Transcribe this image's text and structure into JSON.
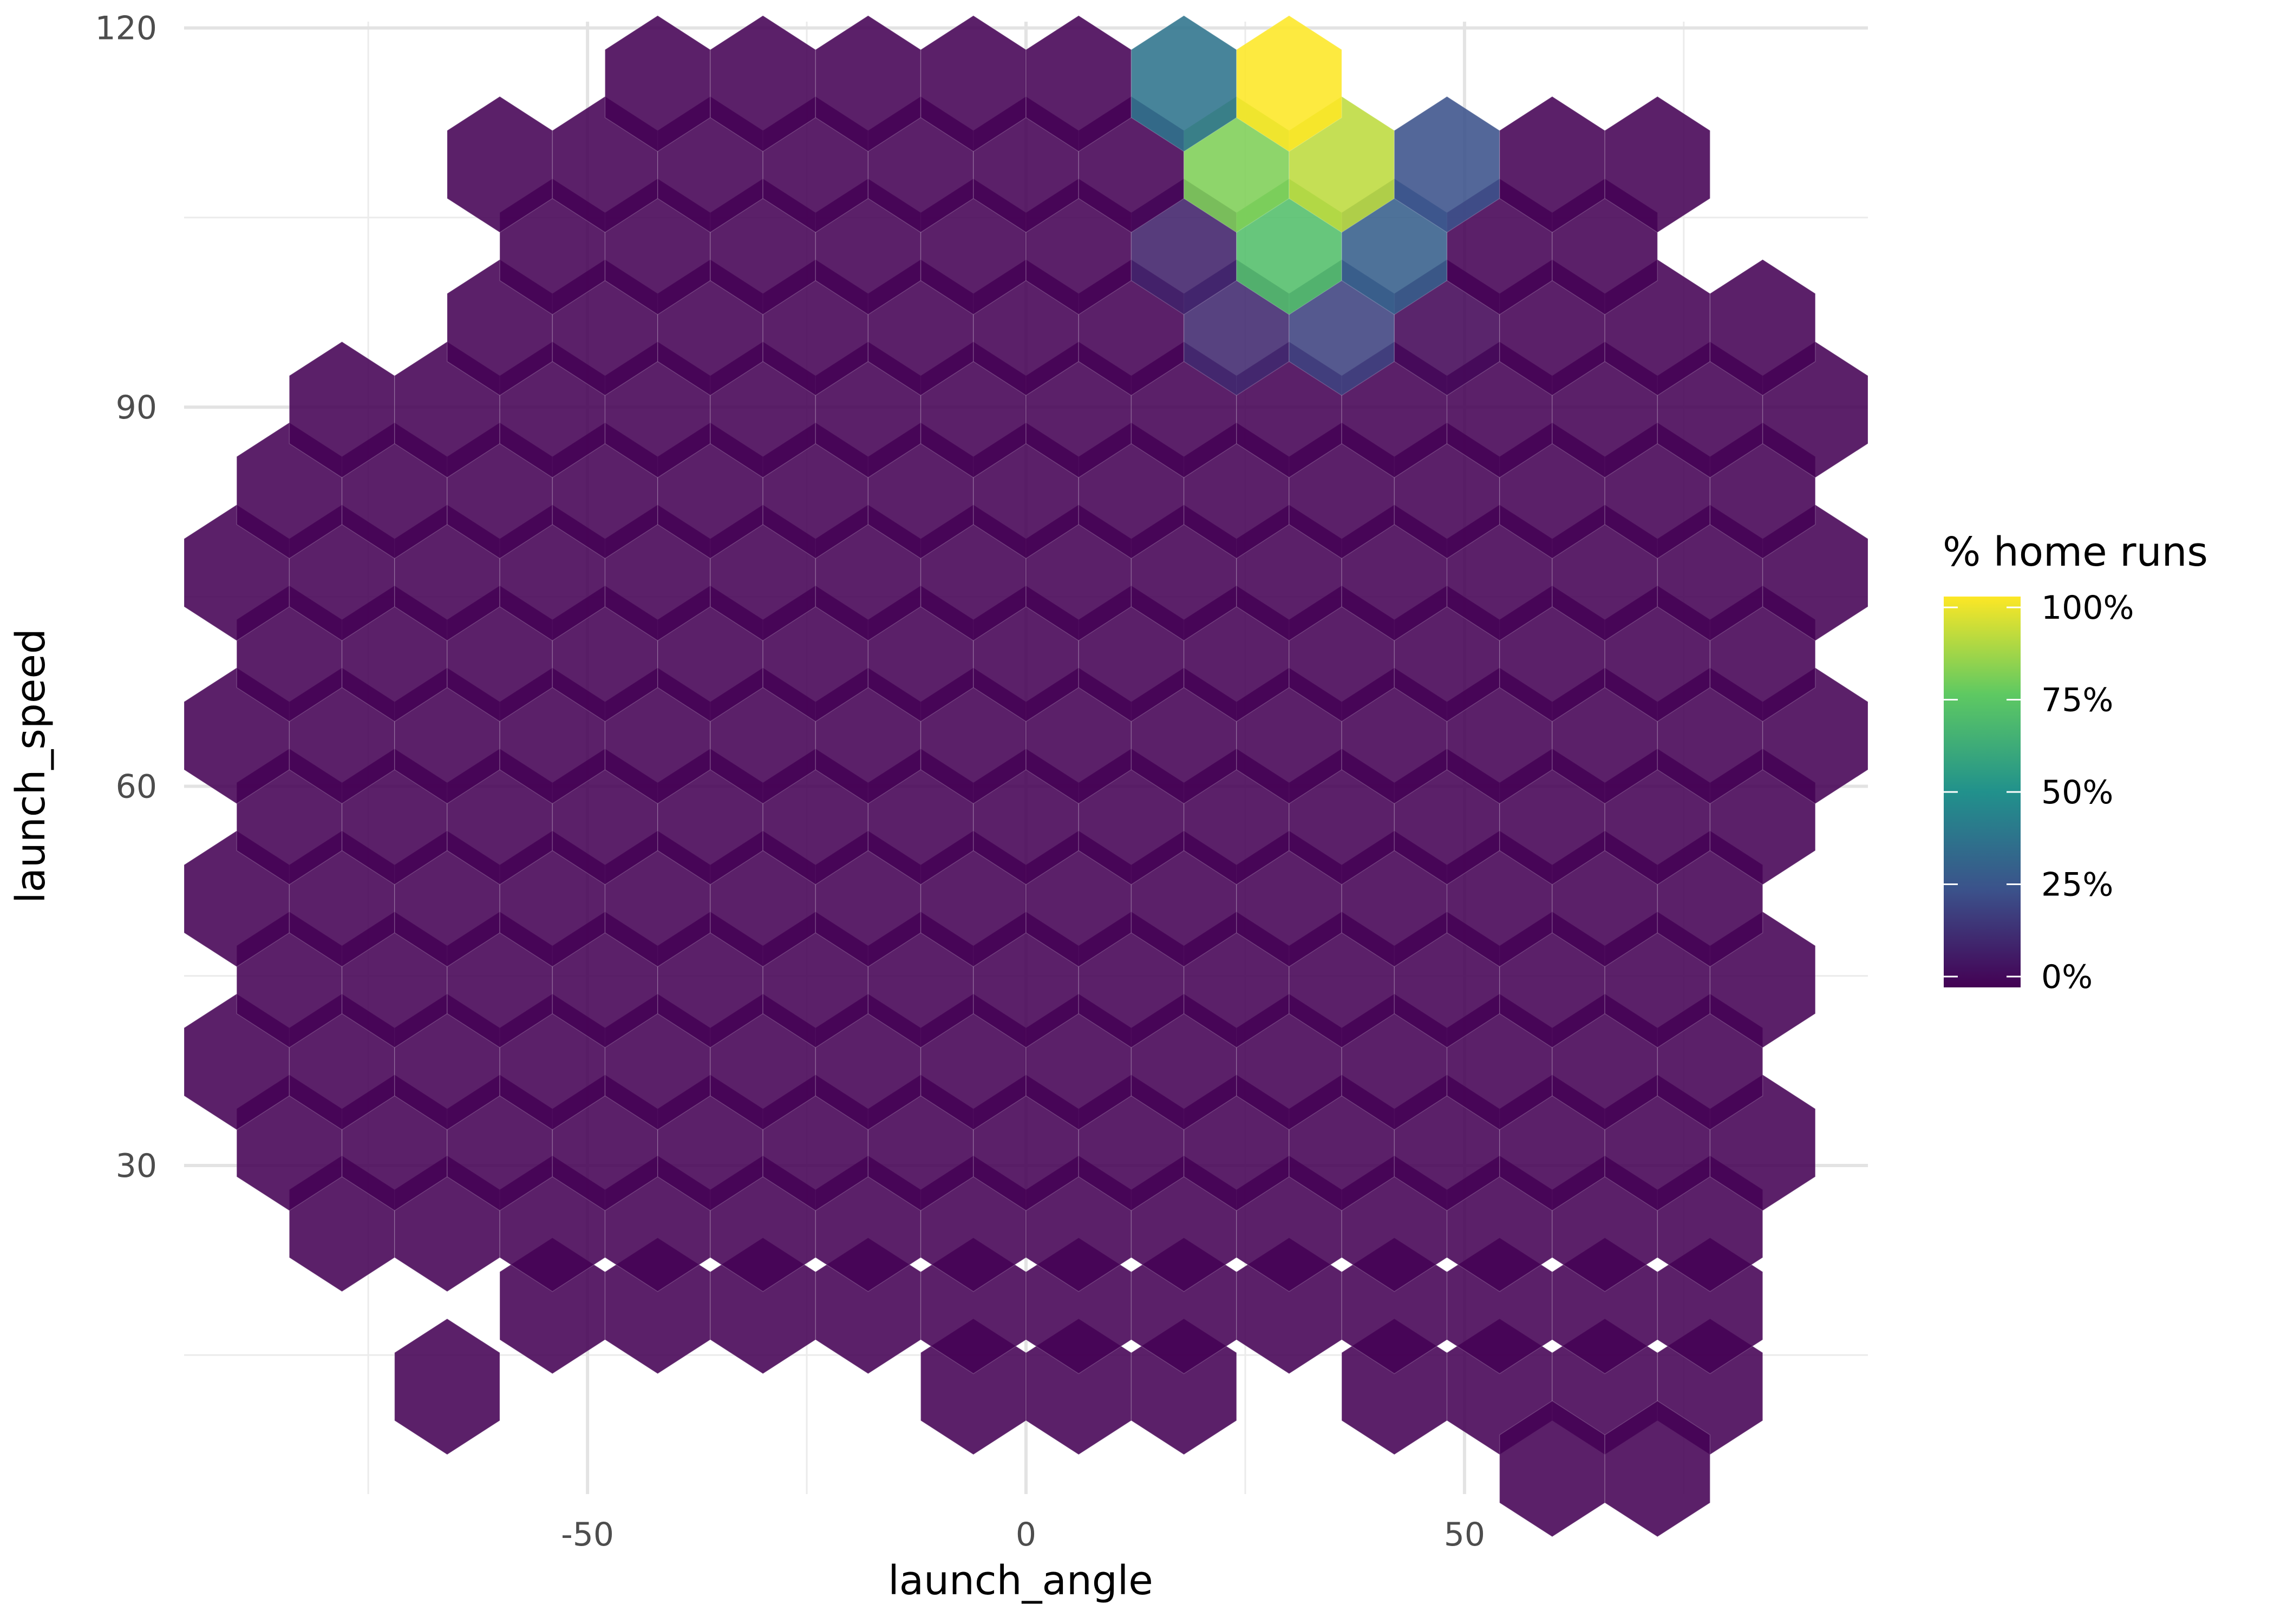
{
  "chart_data": {
    "type": "heatmap",
    "geom": "hexbin",
    "title": "",
    "xlabel": "launch_angle",
    "ylabel": "launch_speed",
    "xlim": [
      -96,
      96
    ],
    "ylim": [
      4,
      120.5
    ],
    "x_ticks": [
      -50,
      0,
      50
    ],
    "x_tick_labels": [
      "-50",
      "0",
      "50"
    ],
    "y_ticks": [
      30,
      60,
      90,
      120
    ],
    "y_tick_labels": [
      "30",
      "60",
      "90",
      "120"
    ],
    "grid": true,
    "legend": {
      "title": "% home runs",
      "position": "right",
      "palette": [
        "#440154",
        "#3b528b",
        "#21918c",
        "#5ec962",
        "#fde725"
      ],
      "ticks": [
        0,
        25,
        50,
        75,
        100
      ],
      "tick_labels": [
        "0%",
        "25%",
        "50%",
        "75%",
        "100%"
      ]
    },
    "hex_width_x": 12.0,
    "hex_height_y": 10.75,
    "default_value": 0,
    "row_spans": [
      {
        "y": 12.5,
        "x_from": -66,
        "x_to": -66
      },
      {
        "y": 12.5,
        "x_from": -6,
        "x_to": 18
      },
      {
        "y": 12.5,
        "x_from": 42,
        "x_to": 78
      },
      {
        "y": 6.0,
        "x_from": 60,
        "x_to": 72
      },
      {
        "y": 18.9,
        "x_from": -54,
        "x_to": 84
      },
      {
        "y": 25.4,
        "x_from": -78,
        "x_to": 78
      },
      {
        "y": 31.8,
        "x_from": -84,
        "x_to": 84
      },
      {
        "y": 38.2,
        "x_from": -90,
        "x_to": 78
      },
      {
        "y": 44.7,
        "x_from": -84,
        "x_to": 84
      },
      {
        "y": 51.1,
        "x_from": -90,
        "x_to": 78
      },
      {
        "y": 57.6,
        "x_from": -84,
        "x_to": 84
      },
      {
        "y": 64.0,
        "x_from": -90,
        "x_to": 90
      },
      {
        "y": 70.5,
        "x_from": -84,
        "x_to": 84
      },
      {
        "y": 76.9,
        "x_from": -90,
        "x_to": 90
      },
      {
        "y": 83.4,
        "x_from": -84,
        "x_to": 84
      },
      {
        "y": 89.8,
        "x_from": -78,
        "x_to": 90
      },
      {
        "y": 96.3,
        "x_from": -60,
        "x_to": 84
      },
      {
        "y": 102.7,
        "x_from": -54,
        "x_to": 66
      },
      {
        "y": 109.2,
        "x_from": -60,
        "x_to": 72
      },
      {
        "y": 115.6,
        "x_from": -42,
        "x_to": 30
      }
    ],
    "highlighted_cells": [
      {
        "x": 30,
        "y": 115.6,
        "value": 100
      },
      {
        "x": 18,
        "y": 115.6,
        "value": 38
      },
      {
        "x": 24,
        "y": 109.2,
        "value": 80
      },
      {
        "x": 36,
        "y": 109.2,
        "value": 90
      },
      {
        "x": 48,
        "y": 109.2,
        "value": 25
      },
      {
        "x": 18,
        "y": 102.7,
        "value": 10
      },
      {
        "x": 30,
        "y": 102.7,
        "value": 70
      },
      {
        "x": 42,
        "y": 102.7,
        "value": 30
      },
      {
        "x": 24,
        "y": 96.3,
        "value": 12
      },
      {
        "x": 36,
        "y": 96.3,
        "value": 20
      },
      {
        "x": 48,
        "y": 96.3,
        "value": 2
      }
    ]
  }
}
